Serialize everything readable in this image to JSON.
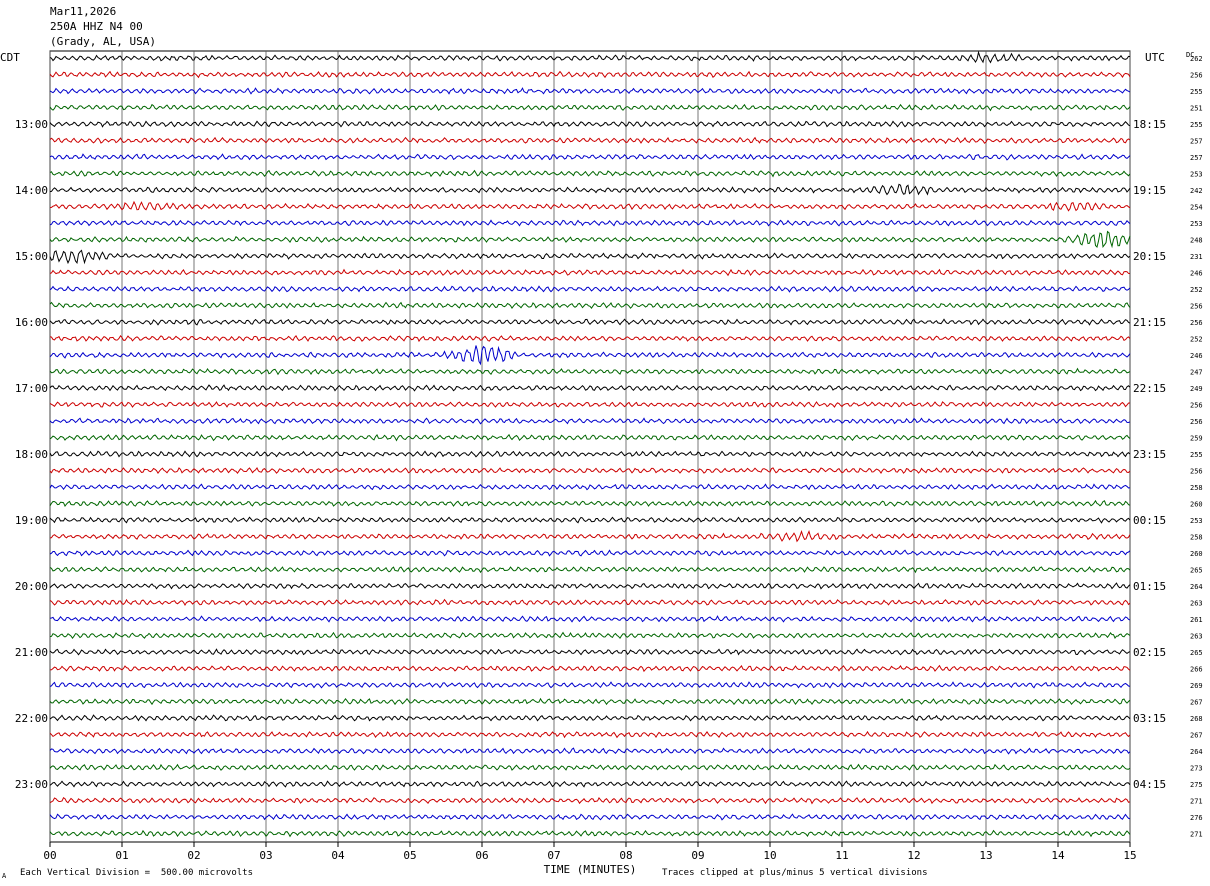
{
  "header": {
    "date": "Mar11,2026",
    "station": "250A HHZ N4 00",
    "location": "(Grady, AL, USA)"
  },
  "left_zone_label": "CDT",
  "right_zone_label": "UTC",
  "dc_label": "DC",
  "footer": {
    "scale_note": "Each Vertical Division =  500.00 microvolts",
    "clip_note": "Traces clipped at plus/minus 5 vertical divisions",
    "corner_mark": "A"
  },
  "colors": {
    "trace_cycle": [
      "#000000",
      "#cc0000",
      "#0000cc",
      "#006600"
    ],
    "grid": "#000000"
  },
  "chart_data": {
    "type": "line",
    "title": "",
    "xlabel": "TIME (MINUTES)",
    "x_ticks": [
      "00",
      "01",
      "02",
      "03",
      "04",
      "05",
      "06",
      "07",
      "08",
      "09",
      "10",
      "11",
      "12",
      "13",
      "14",
      "15"
    ],
    "xlim": [
      0,
      15
    ],
    "left_hour_labels": [
      "13:00",
      "14:00",
      "15:00",
      "16:00",
      "17:00",
      "18:00",
      "19:00",
      "20:00",
      "21:00",
      "22:00",
      "23:00"
    ],
    "right_hour_labels": [
      "18:15",
      "19:15",
      "20:15",
      "21:15",
      "22:15",
      "23:15",
      "00:15",
      "01:15",
      "02:15",
      "03:15",
      "04:15"
    ],
    "hour_label_first_row": 4,
    "rows_per_hour": 4,
    "dc_values": [
      262,
      256,
      255,
      251,
      255,
      257,
      257,
      253,
      242,
      254,
      253,
      248,
      231,
      246,
      252,
      256,
      256,
      252,
      246,
      247,
      249,
      256,
      256,
      259,
      255,
      256,
      258,
      260,
      253,
      258,
      260,
      265,
      264,
      263,
      261,
      263,
      265,
      266,
      269,
      267,
      268,
      267,
      264,
      273,
      275,
      271,
      276,
      271
    ],
    "events": [
      {
        "row": 0,
        "minute": 13.0,
        "amp": 1.0
      },
      {
        "row": 8,
        "minute": 11.8,
        "amp": 1.2
      },
      {
        "row": 9,
        "minute": 1.3,
        "amp": 0.8
      },
      {
        "row": 9,
        "minute": 14.2,
        "amp": 0.9
      },
      {
        "row": 11,
        "minute": 14.6,
        "amp": 2.2
      },
      {
        "row": 12,
        "minute": 0.3,
        "amp": 1.8
      },
      {
        "row": 18,
        "minute": 6.0,
        "amp": 2.6
      },
      {
        "row": 29,
        "minute": 10.4,
        "amp": 1.2
      }
    ]
  }
}
